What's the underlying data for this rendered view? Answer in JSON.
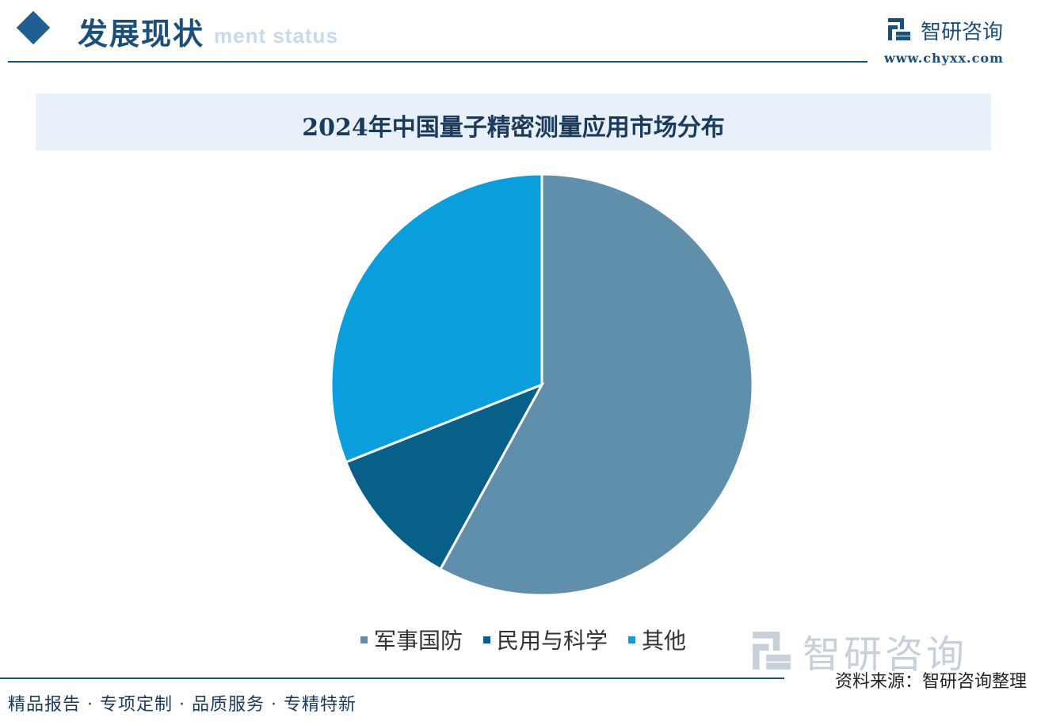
{
  "header": {
    "section_title": "发展现状",
    "section_subtitle": "ment status",
    "brand_name": "智研咨询",
    "brand_url": "www.chyxx.com"
  },
  "colors": {
    "military": "#5f8fab",
    "civil": "#085f87",
    "other": "#0a9edc",
    "accent": "#1b4e79"
  },
  "chart_data": {
    "type": "pie",
    "title": "2024年中国量子精密测量应用市场分布",
    "categories": [
      "军事国防",
      "民用与科学",
      "其他"
    ],
    "values": [
      58,
      11,
      31
    ],
    "start_angle_deg": 0,
    "direction": "clockwise"
  },
  "watermark": {
    "text": "智研咨询"
  },
  "footer": {
    "source": "资料来源：智研咨询整理",
    "tagline": "精品报告 · 专项定制 · 品质服务 · 专精特新"
  }
}
